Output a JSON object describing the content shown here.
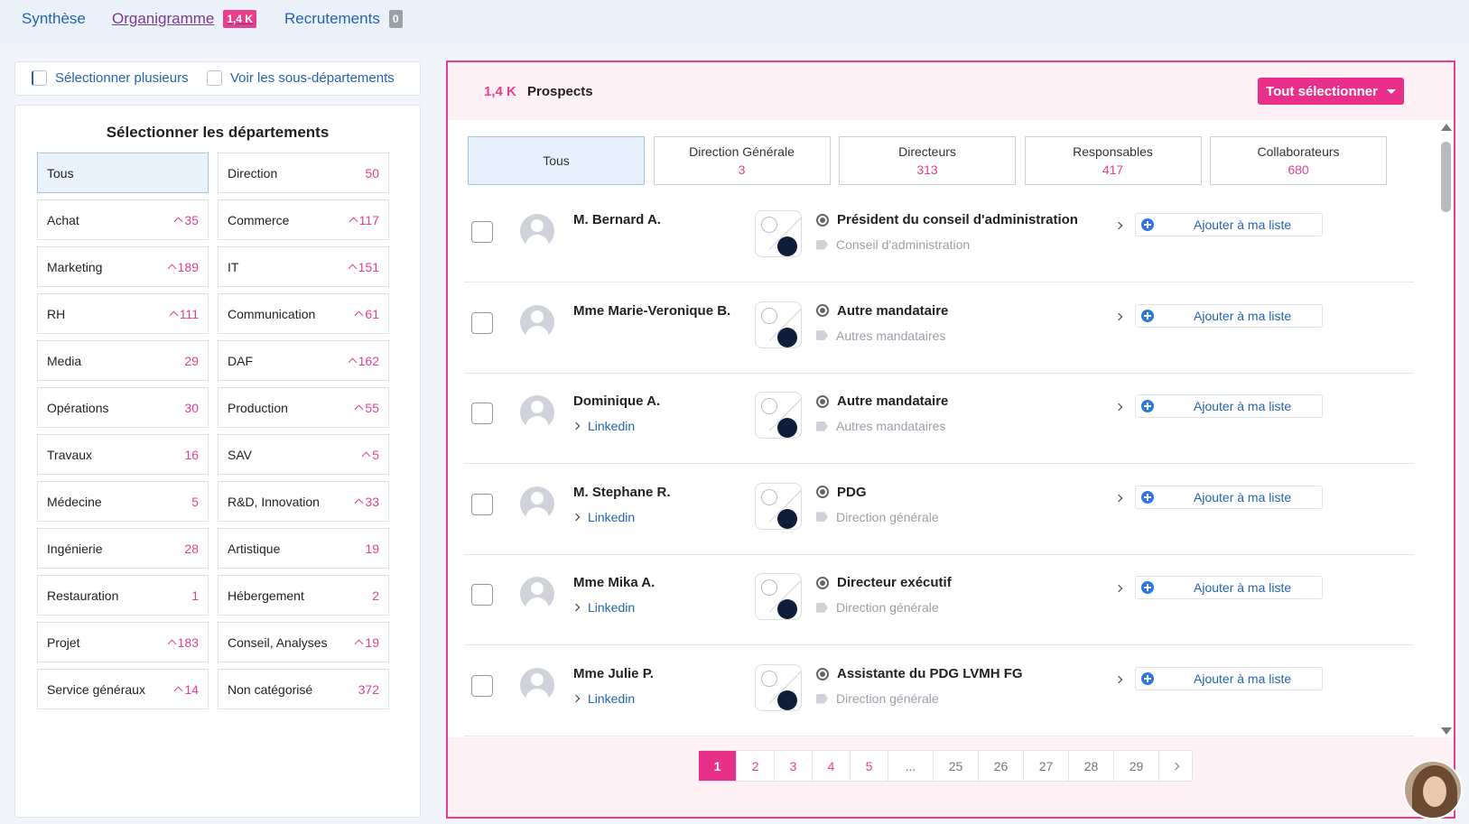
{
  "top_tabs": [
    {
      "label": "Synthèse",
      "badge": ""
    },
    {
      "label": "Organigramme",
      "badge": "1,4 K"
    },
    {
      "label": "Recrutements",
      "badge": "0"
    }
  ],
  "options": {
    "multi_select": "Sélectionner plusieurs",
    "sub_departments": "Voir les sous-départements"
  },
  "departments": {
    "title": "Sélectionner les départements",
    "items": [
      {
        "label": "Tous",
        "count": "",
        "trend": false
      },
      {
        "label": "Direction",
        "count": "50",
        "trend": false
      },
      {
        "label": "Achat",
        "count": "35",
        "trend": true
      },
      {
        "label": "Commerce",
        "count": "117",
        "trend": true
      },
      {
        "label": "Marketing",
        "count": "189",
        "trend": true
      },
      {
        "label": "IT",
        "count": "151",
        "trend": true
      },
      {
        "label": "RH",
        "count": "111",
        "trend": true
      },
      {
        "label": "Communication",
        "count": "61",
        "trend": true
      },
      {
        "label": "Media",
        "count": "29",
        "trend": false
      },
      {
        "label": "DAF",
        "count": "162",
        "trend": true
      },
      {
        "label": "Opérations",
        "count": "30",
        "trend": false
      },
      {
        "label": "Production",
        "count": "55",
        "trend": true
      },
      {
        "label": "Travaux",
        "count": "16",
        "trend": false
      },
      {
        "label": "SAV",
        "count": "5",
        "trend": true
      },
      {
        "label": "Médecine",
        "count": "5",
        "trend": false
      },
      {
        "label": "R&D, Innovation",
        "count": "33",
        "trend": true
      },
      {
        "label": "Ingénierie",
        "count": "28",
        "trend": false
      },
      {
        "label": "Artistique",
        "count": "19",
        "trend": false
      },
      {
        "label": "Restauration",
        "count": "1",
        "trend": false
      },
      {
        "label": "Hébergement",
        "count": "2",
        "trend": false
      },
      {
        "label": "Projet",
        "count": "183",
        "trend": true
      },
      {
        "label": "Conseil, Analyses",
        "count": "19",
        "trend": true
      },
      {
        "label": "Service généraux",
        "count": "14",
        "trend": true
      },
      {
        "label": "Non catégorisé",
        "count": "372",
        "trend": false
      }
    ]
  },
  "prospects": {
    "count": "1,4 K",
    "label": "Prospects",
    "select_all": "Tout sélectionner",
    "levels": [
      {
        "label": "Tous",
        "count": ""
      },
      {
        "label": "Direction Générale",
        "count": "3"
      },
      {
        "label": "Directeurs",
        "count": "313"
      },
      {
        "label": "Responsables",
        "count": "417"
      },
      {
        "label": "Collaborateurs",
        "count": "680"
      }
    ],
    "add_label": "Ajouter à ma liste",
    "rows": [
      {
        "name": "M. Bernard A.",
        "link": "",
        "role": "Président du conseil d'administration",
        "dept": "Conseil d'administration"
      },
      {
        "name": "Mme Marie-Veronique B.",
        "link": "",
        "role": "Autre mandataire",
        "dept": "Autres mandataires"
      },
      {
        "name": "Dominique A.",
        "link": "Linkedin",
        "role": "Autre mandataire",
        "dept": "Autres mandataires"
      },
      {
        "name": "M. Stephane R.",
        "link": "Linkedin",
        "role": "PDG",
        "dept": "Direction générale"
      },
      {
        "name": "Mme Mika A.",
        "link": "Linkedin",
        "role": "Directeur exécutif",
        "dept": "Direction générale"
      },
      {
        "name": "Mme Julie P.",
        "link": "Linkedin",
        "role": "Assistante du PDG LVMH FG",
        "dept": "Direction générale"
      }
    ]
  },
  "pagination": [
    "1",
    "2",
    "3",
    "4",
    "5",
    "...",
    "25",
    "26",
    "27",
    "28",
    "29"
  ]
}
